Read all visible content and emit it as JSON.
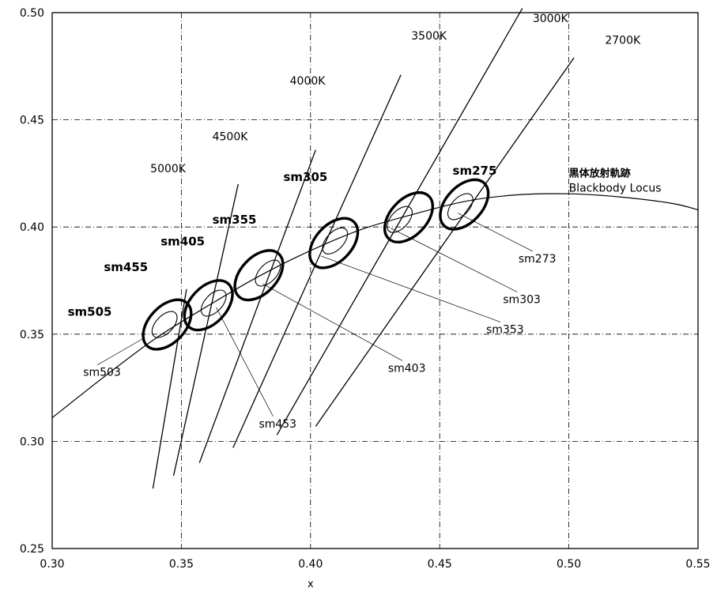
{
  "chart_data": {
    "type": "scatter",
    "xlabel": "x",
    "ylabel": "",
    "xlim": [
      0.3,
      0.55
    ],
    "ylim": [
      0.25,
      0.5
    ],
    "grid": true,
    "x_ticks": [
      "0.30",
      "0.35",
      "0.40",
      "0.45",
      "0.50",
      "0.55"
    ],
    "y_ticks": [
      "0.25",
      "0.30",
      "0.35",
      "0.40",
      "0.45",
      "0.50"
    ],
    "locus": {
      "label_jp": "黒体放射軌跡",
      "label_en": "Blackbody Locus",
      "points": [
        [
          0.3,
          0.311
        ],
        [
          0.32,
          0.33
        ],
        [
          0.34,
          0.348
        ],
        [
          0.36,
          0.363
        ],
        [
          0.38,
          0.377
        ],
        [
          0.4,
          0.389
        ],
        [
          0.42,
          0.399
        ],
        [
          0.44,
          0.406
        ],
        [
          0.46,
          0.412
        ],
        [
          0.48,
          0.415
        ],
        [
          0.5,
          0.4155
        ],
        [
          0.52,
          0.414
        ],
        [
          0.54,
          0.411
        ],
        [
          0.55,
          0.408
        ]
      ]
    },
    "cct_lines": [
      {
        "label": "5000K",
        "x1": 0.339,
        "y1": 0.278,
        "x2": 0.352,
        "y2": 0.371,
        "lx": 0.338,
        "ly": 0.4255
      },
      {
        "label": "4500K",
        "x1": 0.347,
        "y1": 0.284,
        "x2": 0.372,
        "y2": 0.42,
        "lx": 0.362,
        "ly": 0.4405
      },
      {
        "label": "4000K",
        "x1": 0.357,
        "y1": 0.29,
        "x2": 0.402,
        "y2": 0.436,
        "lx": 0.392,
        "ly": 0.4665
      },
      {
        "label": "3500K",
        "x1": 0.37,
        "y1": 0.297,
        "x2": 0.435,
        "y2": 0.471,
        "lx": 0.439,
        "ly": 0.4875
      },
      {
        "label": "3000K",
        "x1": 0.387,
        "y1": 0.303,
        "x2": 0.482,
        "y2": 0.502,
        "lx": 0.486,
        "ly": 0.4955
      },
      {
        "label": "2700K",
        "x1": 0.402,
        "y1": 0.307,
        "x2": 0.502,
        "y2": 0.479,
        "lx": 0.514,
        "ly": 0.4855
      }
    ],
    "outer_ellipses": [
      {
        "name": "sm505",
        "cx": 0.3445,
        "cy": 0.3545,
        "lx": 0.306,
        "ly": 0.3585
      },
      {
        "name": "sm455",
        "cx": 0.3605,
        "cy": 0.3635,
        "lx": 0.32,
        "ly": 0.3795
      },
      {
        "name": "sm405",
        "cx": 0.38,
        "cy": 0.3775,
        "lx": 0.342,
        "ly": 0.3915
      },
      {
        "name": "sm355",
        "cx": 0.409,
        "cy": 0.3925,
        "lx": 0.362,
        "ly": 0.4015
      },
      {
        "name": "sm305",
        "cx": 0.438,
        "cy": 0.4045,
        "lx": 0.3895,
        "ly": 0.4215
      },
      {
        "name": "sm275",
        "cx": 0.4595,
        "cy": 0.4105,
        "lx": 0.455,
        "ly": 0.4245
      }
    ],
    "inner_ellipses": [
      {
        "name": "sm503",
        "cx": 0.3435,
        "cy": 0.3545,
        "lx": 0.312,
        "ly": 0.3305,
        "px": 0.336,
        "py": 0.3485
      },
      {
        "name": "sm453",
        "cx": 0.3625,
        "cy": 0.3645,
        "lx": 0.38,
        "ly": 0.3065,
        "px": 0.3635,
        "py": 0.3625
      },
      {
        "name": "sm403",
        "cx": 0.3835,
        "cy": 0.3785,
        "lx": 0.43,
        "ly": 0.3325,
        "px": 0.3815,
        "py": 0.3735
      },
      {
        "name": "sm353",
        "cx": 0.4095,
        "cy": 0.3935,
        "lx": 0.468,
        "ly": 0.3505,
        "px": 0.404,
        "py": 0.3865
      },
      {
        "name": "sm303",
        "cx": 0.4345,
        "cy": 0.4035,
        "lx": 0.4745,
        "ly": 0.3645,
        "px": 0.431,
        "py": 0.3995
      },
      {
        "name": "sm273",
        "cx": 0.458,
        "cy": 0.4095,
        "lx": 0.4805,
        "ly": 0.3835,
        "px": 0.457,
        "py": 0.4065
      }
    ]
  }
}
